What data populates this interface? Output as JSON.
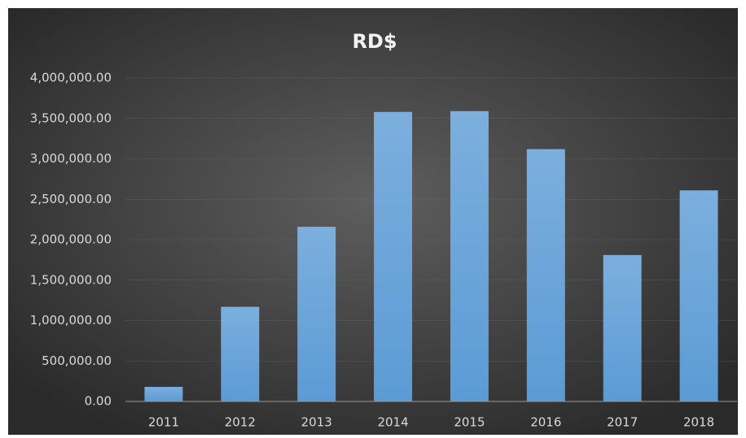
{
  "chart_data": {
    "type": "bar",
    "title": "RD$",
    "categories": [
      "2011",
      "2012",
      "2013",
      "2014",
      "2015",
      "2016",
      "2017",
      "2018"
    ],
    "values": [
      180000,
      1170000,
      2160000,
      3580000,
      3590000,
      3120000,
      1810000,
      2610000
    ],
    "color": "#5b9bd5",
    "ylim": [
      0,
      4000000
    ],
    "yticks": [
      {
        "value": 0,
        "label": "0.00"
      },
      {
        "value": 500000,
        "label": "500,000.00"
      },
      {
        "value": 1000000,
        "label": "1,000,000.00"
      },
      {
        "value": 1500000,
        "label": "1,500,000.00"
      },
      {
        "value": 2000000,
        "label": "2,000,000.00"
      },
      {
        "value": 2500000,
        "label": "2,500,000.00"
      },
      {
        "value": 3000000,
        "label": "3,000,000.00"
      },
      {
        "value": 3500000,
        "label": "3,500,000.00"
      },
      {
        "value": 4000000,
        "label": "4,000,000.00"
      }
    ],
    "grid": true
  }
}
